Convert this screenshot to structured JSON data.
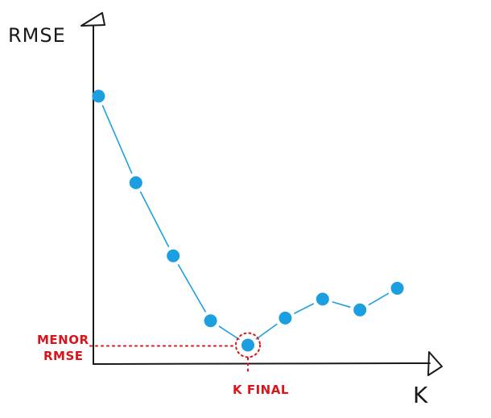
{
  "chart_data": {
    "type": "line",
    "title": "",
    "xlabel": "K",
    "ylabel": "RMSE",
    "x": [
      1,
      2,
      3,
      4,
      5,
      6,
      7,
      8,
      9
    ],
    "series": [
      {
        "values": [
          0.84,
          0.52,
          0.25,
          0.01,
          -0.08,
          0.02,
          0.09,
          0.05,
          0.13
        ]
      }
    ],
    "xlim": [
      0,
      10
    ],
    "ylim": [
      -0.15,
      1.1
    ],
    "grid": false,
    "tick_labels": false,
    "highlight": {
      "x": 5,
      "y": -0.08
    },
    "annotations": {
      "min_label_line1": "MENOR",
      "min_label_line2": "RMSE",
      "k_final": "K FINAL"
    },
    "colors": {
      "series": "#1b9fe0",
      "highlight": "#d9141b",
      "axis": "#1a1a1a"
    }
  }
}
